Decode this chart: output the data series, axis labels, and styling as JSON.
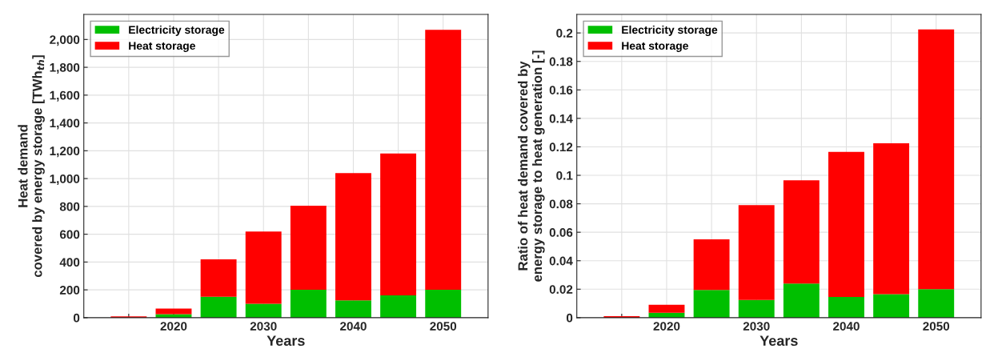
{
  "chart_data": [
    {
      "type": "bar",
      "stacked": true,
      "x": [
        2015,
        2020,
        2025,
        2030,
        2035,
        2040,
        2045,
        2050
      ],
      "xlabel": "Years",
      "ylabel": "Heat demand\ncovered by energy storage [TWh$_{th}$]",
      "xlim": [
        2010,
        2055
      ],
      "xticks": [
        {
          "value": 2015,
          "label": null
        },
        2020,
        {
          "value": 2025,
          "label": null
        },
        2030,
        {
          "value": 2035,
          "label": null
        },
        2040,
        {
          "value": 2045,
          "label": null
        },
        2050
      ],
      "ylim": [
        0,
        2180
      ],
      "yticks": [
        0,
        200,
        400,
        600,
        800,
        {
          "value": 1000,
          "label": "1,000"
        },
        {
          "value": 1200,
          "label": "1,200"
        },
        {
          "value": 1400,
          "label": "1,400"
        },
        {
          "value": 1600,
          "label": "1,600"
        },
        {
          "value": 1800,
          "label": "1,800"
        },
        {
          "value": 2000,
          "label": "2,000"
        }
      ],
      "grid": true,
      "legend": "top left",
      "series": [
        {
          "name": "Electricity storage",
          "color": "#00bf00",
          "values": [
            0,
            25,
            150,
            100,
            200,
            125,
            160,
            200
          ]
        },
        {
          "name": "Heat storage",
          "color": "#ff0000",
          "values": [
            10,
            40,
            270,
            520,
            605,
            915,
            1020,
            1870
          ]
        }
      ]
    },
    {
      "type": "bar",
      "stacked": true,
      "x": [
        2015,
        2020,
        2025,
        2030,
        2035,
        2040,
        2045,
        2050
      ],
      "xlabel": "Years",
      "ylabel": "Ratio of heat demand covered by\nenergy storage to heat generation [-]",
      "xlim": [
        2010,
        2055
      ],
      "xticks": [
        {
          "value": 2015,
          "label": null
        },
        2020,
        {
          "value": 2025,
          "label": null
        },
        2030,
        {
          "value": 2035,
          "label": null
        },
        2040,
        {
          "value": 2045,
          "label": null
        },
        2050
      ],
      "ylim": [
        0,
        0.213
      ],
      "yticks": [
        0,
        0.02,
        0.04,
        0.06,
        0.08,
        0.1,
        0.12,
        0.14,
        0.16,
        0.18,
        0.2
      ],
      "grid": true,
      "legend": "top left",
      "series": [
        {
          "name": "Electricity storage",
          "color": "#00bf00",
          "values": [
            0,
            0.0035,
            0.0195,
            0.0125,
            0.024,
            0.0145,
            0.0165,
            0.02
          ]
        },
        {
          "name": "Heat storage",
          "color": "#ff0000",
          "values": [
            0.001,
            0.0055,
            0.0355,
            0.0665,
            0.0725,
            0.102,
            0.106,
            0.1825
          ]
        }
      ]
    }
  ]
}
